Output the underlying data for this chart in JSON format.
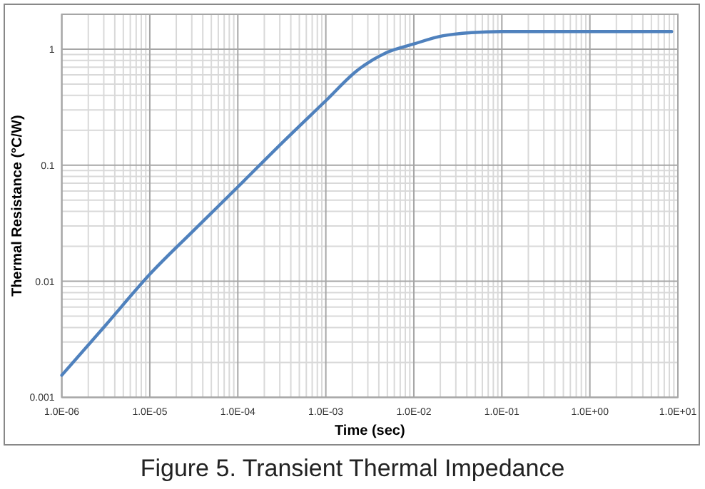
{
  "chart_data": {
    "type": "line",
    "xlabel": "Time (sec)",
    "ylabel": "Thermal Resistance (°C/W)",
    "annotations": [
      "Figure 5. Transient Thermal Impedance"
    ],
    "log": "xy",
    "grid": true,
    "line_style": "solid",
    "marker": "none",
    "xlim": [
      1e-06,
      10
    ],
    "ylim": [
      0.001,
      2
    ],
    "xticks": [
      {
        "value": 1e-06,
        "label": "1.0E-06"
      },
      {
        "value": 1e-05,
        "label": "1.0E-05"
      },
      {
        "value": 0.0001,
        "label": "1.0E-04"
      },
      {
        "value": 0.001,
        "label": "1.0E-03"
      },
      {
        "value": 0.01,
        "label": "1.0E-02"
      },
      {
        "value": 0.1,
        "label": "1.0E-01"
      },
      {
        "value": 1,
        "label": "1.0E+00"
      },
      {
        "value": 10,
        "label": "1.0E+01"
      }
    ],
    "yticks": [
      0.001,
      0.01,
      0.1,
      1
    ],
    "series": [
      {
        "color": "#4f81bd",
        "x": [
          1e-06,
          3.16e-06,
          1e-05,
          3.16e-05,
          0.0001,
          0.000316,
          0.001,
          0.00224,
          0.0048,
          0.01,
          0.021,
          0.045,
          0.1,
          1,
          8.5
        ],
        "values": [
          0.00155,
          0.0042,
          0.0115,
          0.0275,
          0.065,
          0.155,
          0.36,
          0.65,
          0.93,
          1.11,
          1.3,
          1.39,
          1.42,
          1.42,
          1.42
        ]
      }
    ]
  }
}
